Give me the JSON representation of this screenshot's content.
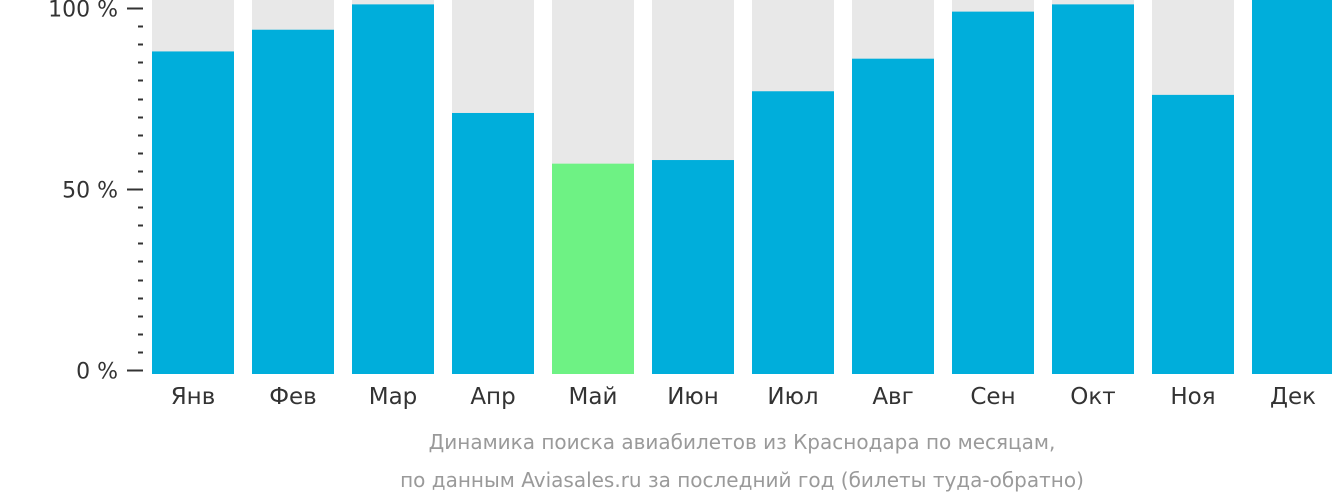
{
  "chart_data": {
    "type": "bar",
    "categories": [
      "Янв",
      "Фев",
      "Мар",
      "Апр",
      "Май",
      "Июн",
      "Июл",
      "Авг",
      "Сен",
      "Окт",
      "Ноя",
      "Дек"
    ],
    "values": [
      88,
      94,
      101,
      71,
      57,
      58,
      77,
      86,
      99,
      101,
      76,
      104
    ],
    "highlight_index": 4,
    "ylim": [
      0,
      100
    ],
    "yticks": [
      {
        "value": 0,
        "label": "0 %"
      },
      {
        "value": 50,
        "label": "50 %"
      },
      {
        "value": 100,
        "label": "100 %"
      }
    ],
    "minor_tick_step": 10,
    "title": "",
    "xlabel": "",
    "ylabel": "",
    "grid": false,
    "legend": "none",
    "colors": {
      "bar": "#00AEDB",
      "highlight": "#6EF284",
      "bar_background": "#E8E8E8",
      "axis": "#333333",
      "caption": "#9A9A9A"
    }
  },
  "caption": {
    "line1": "Динамика поиска авиабилетов из Краснодара по месяцам,",
    "line2": "по данным Aviasales.ru за последний год (билеты туда-обратно)"
  }
}
